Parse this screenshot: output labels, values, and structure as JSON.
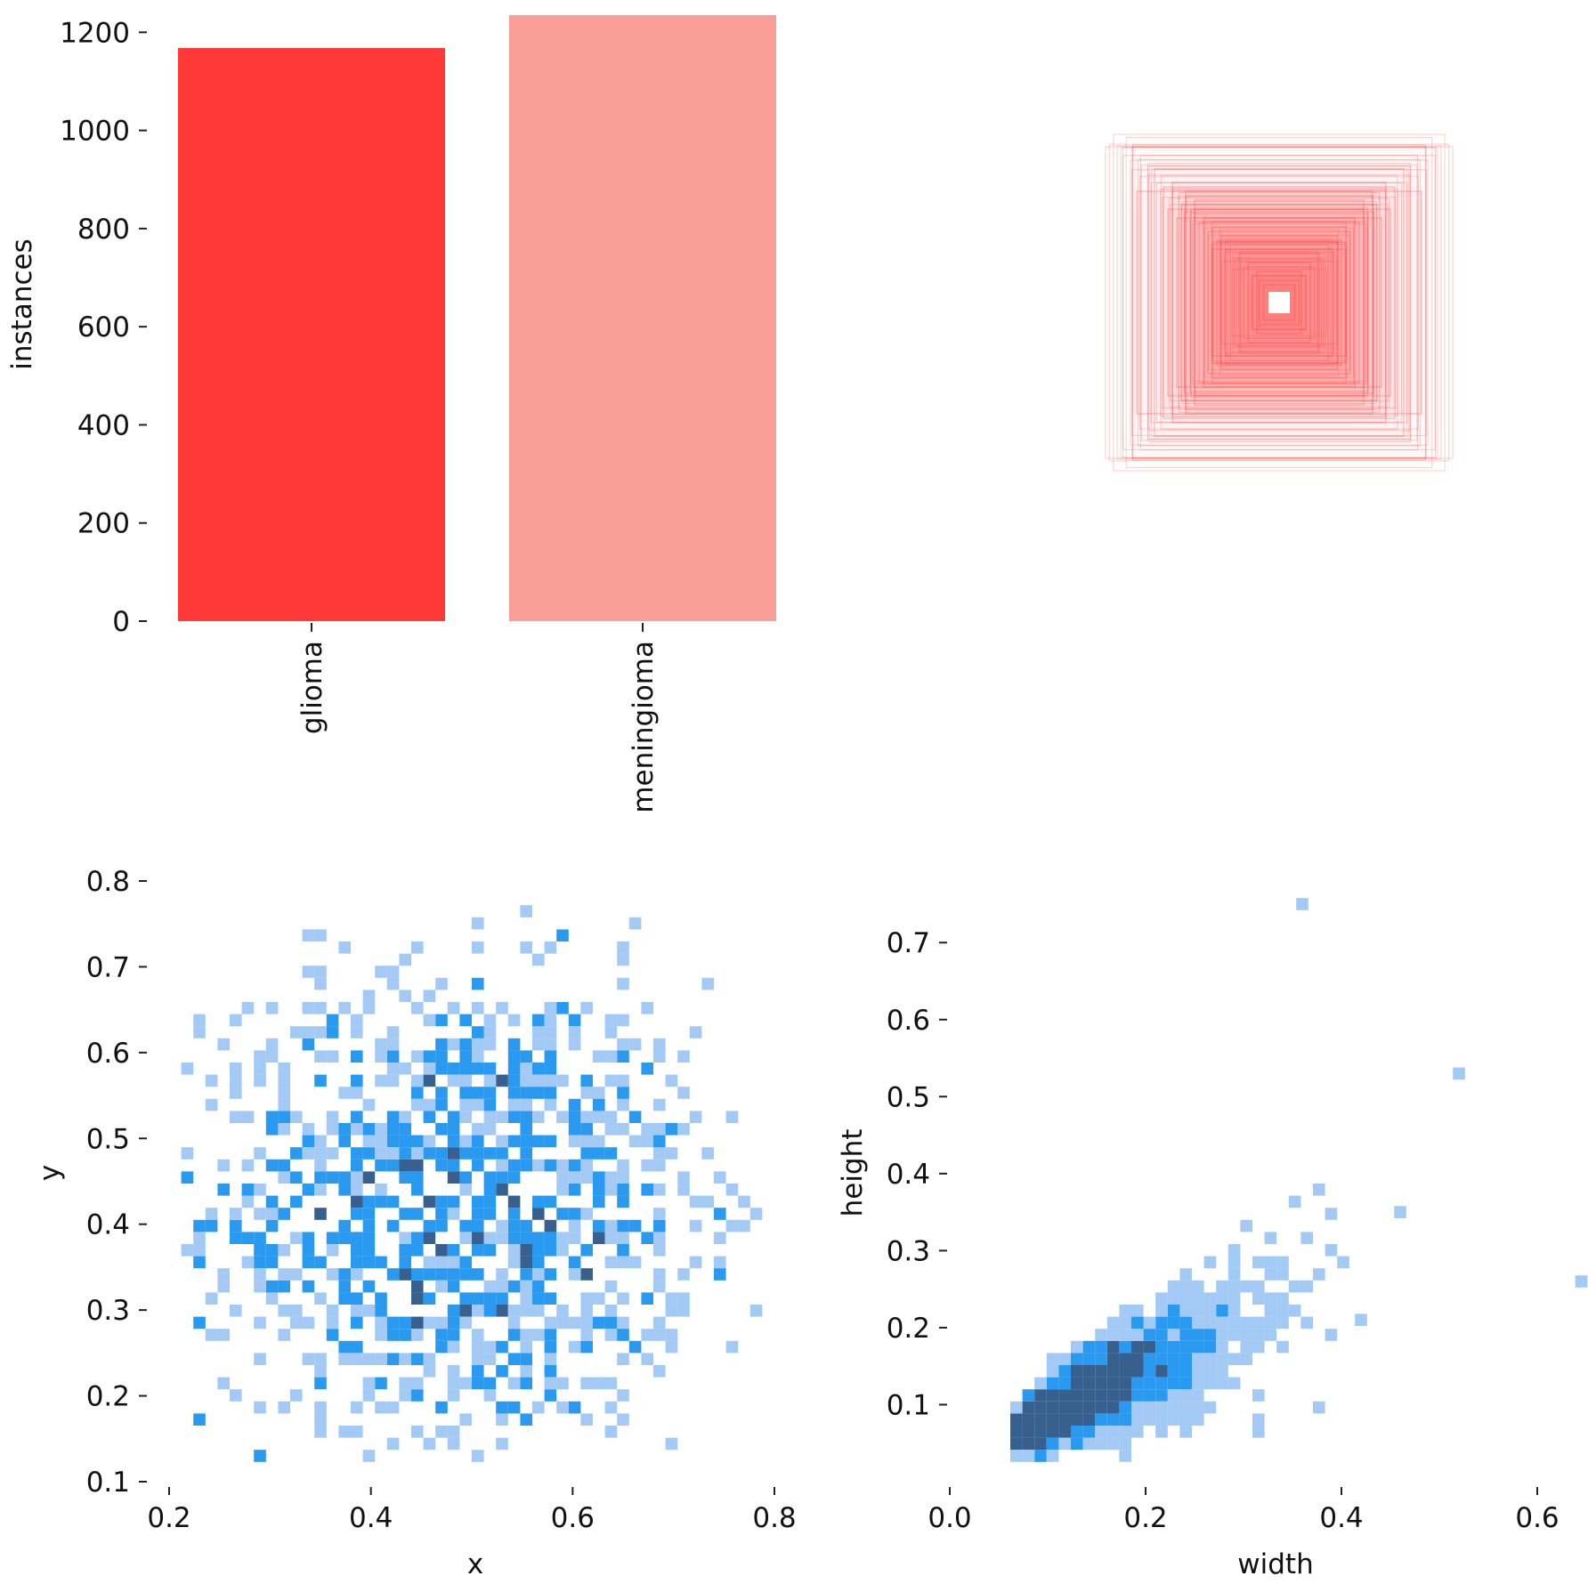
{
  "chart_data": [
    {
      "id": "class-counts",
      "type": "bar",
      "categories": [
        "glioma",
        "meningioma"
      ],
      "values": [
        1168,
        1235
      ],
      "colors": [
        "#ff3838",
        "#fa9f97"
      ],
      "ylabel": "instances",
      "xlabel": "",
      "ylim": [
        0,
        1235
      ],
      "yticks": [
        0,
        200,
        400,
        600,
        800,
        1000,
        1200
      ],
      "ytick_labels": [
        "0",
        "200",
        "400",
        "600",
        "800",
        "1000",
        "1200"
      ],
      "grid": false
    },
    {
      "id": "box-overlay",
      "type": "other",
      "description_color": "#ff3838",
      "sample_boxes_wh": [
        [
          0.33,
          0.35
        ],
        [
          0.32,
          0.25
        ],
        [
          0.28,
          0.3
        ],
        [
          0.26,
          0.26
        ],
        [
          0.24,
          0.27
        ],
        [
          0.22,
          0.22
        ],
        [
          0.21,
          0.24
        ],
        [
          0.2,
          0.2
        ],
        [
          0.19,
          0.21
        ],
        [
          0.18,
          0.18
        ],
        [
          0.17,
          0.19
        ],
        [
          0.16,
          0.16
        ],
        [
          0.15,
          0.17
        ],
        [
          0.14,
          0.14
        ],
        [
          0.13,
          0.15
        ],
        [
          0.12,
          0.12
        ],
        [
          0.11,
          0.13
        ],
        [
          0.1,
          0.1
        ],
        [
          0.09,
          0.11
        ],
        [
          0.08,
          0.08
        ],
        [
          0.07,
          0.09
        ],
        [
          0.06,
          0.06
        ],
        [
          0.05,
          0.07
        ],
        [
          0.045,
          0.05
        ],
        [
          0.035,
          0.04
        ],
        [
          0.23,
          0.19
        ],
        [
          0.19,
          0.23
        ],
        [
          0.25,
          0.21
        ],
        [
          0.21,
          0.25
        ],
        [
          0.15,
          0.12
        ]
      ]
    },
    {
      "id": "xy-histogram",
      "type": "heatmap",
      "xlabel": "x",
      "ylabel": "y",
      "xlim": [
        0.2,
        0.8
      ],
      "ylim": [
        0.1,
        0.8
      ],
      "xticks": [
        0.2,
        0.4,
        0.6,
        0.8
      ],
      "xtick_labels": [
        "0.2",
        "0.4",
        "0.6",
        "0.8"
      ],
      "yticks": [
        0.1,
        0.2,
        0.3,
        0.4,
        0.5,
        0.6,
        0.7,
        0.8
      ],
      "ytick_labels": [
        "0.1",
        "0.2",
        "0.3",
        "0.4",
        "0.5",
        "0.6",
        "0.7",
        "0.8"
      ],
      "bins": 50,
      "center": [
        0.48,
        0.42
      ],
      "spread": [
        0.12,
        0.13
      ],
      "colors": [
        "#a3c9f5",
        "#2a9af0",
        "#37608f"
      ],
      "grid": false
    },
    {
      "id": "wh-histogram",
      "type": "heatmap",
      "xlabel": "width",
      "ylabel": "height",
      "xlim": [
        0.0,
        0.65
      ],
      "ylim": [
        0.0,
        0.78
      ],
      "xticks": [
        0.0,
        0.2,
        0.4,
        0.6
      ],
      "xtick_labels": [
        "0.0",
        "0.2",
        "0.4",
        "0.6"
      ],
      "yticks": [
        0.1,
        0.2,
        0.3,
        0.4,
        0.5,
        0.6,
        0.7
      ],
      "ytick_labels": [
        "0.1",
        "0.2",
        "0.3",
        "0.4",
        "0.5",
        "0.6",
        "0.7"
      ],
      "bins": 50,
      "outliers": [
        [
          0.36,
          0.75
        ],
        [
          0.52,
          0.53
        ],
        [
          0.645,
          0.26
        ],
        [
          0.46,
          0.35
        ],
        [
          0.42,
          0.21
        ]
      ],
      "colors": [
        "#a3c9f5",
        "#2a9af0",
        "#37608f"
      ],
      "grid": false
    }
  ]
}
